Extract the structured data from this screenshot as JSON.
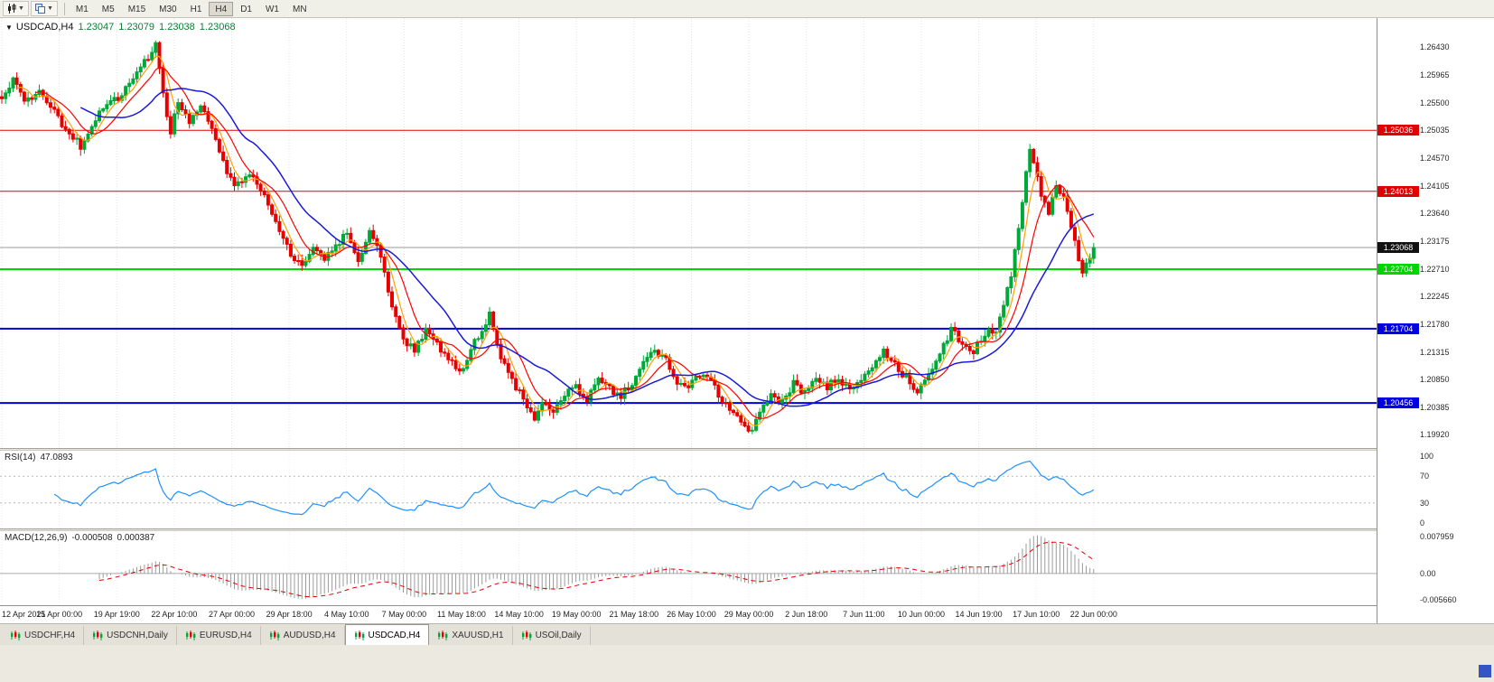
{
  "toolbar": {
    "chart_type_button": "T",
    "timeframes": [
      "M1",
      "M5",
      "M15",
      "M30",
      "H1",
      "H4",
      "D1",
      "W1",
      "MN"
    ],
    "active_timeframe": "H4"
  },
  "chart_data": {
    "type": "candlestick",
    "symbol": "USDCAD",
    "timeframe": "H4",
    "title_symbol": "USDCAD,H4",
    "ohlc": {
      "open": "1.23047",
      "high": "1.23079",
      "low": "1.23038",
      "close": "1.23068"
    },
    "colors": {
      "up": "#00A838",
      "down": "#E60000",
      "ma_fast": "#FFA200",
      "ma_mid": "#FF0000",
      "ma_slow": "#1A1AD8",
      "grid": "#e2e2e2",
      "current_line": "#999999"
    },
    "price_axis": {
      "min": 1.1976,
      "max": 1.268,
      "tick_labels": [
        "1.26430",
        "1.25965",
        "1.25500",
        "1.25035",
        "1.24570",
        "1.24105",
        "1.23640",
        "1.23175",
        "1.22710",
        "1.22245",
        "1.21780",
        "1.21315",
        "1.20850",
        "1.20385",
        "1.19920"
      ]
    },
    "horizontal_lines": [
      {
        "price": 1.25036,
        "label": "1.25036",
        "color": "#E00000",
        "width": 1
      },
      {
        "price": 1.24013,
        "label": "1.24013",
        "color": "#E00000",
        "width": 1
      },
      {
        "price": 1.22704,
        "label": "1.22704",
        "color": "#00D500",
        "width": 2
      },
      {
        "price": 1.21704,
        "label": "1.21704",
        "color": "#0000E0",
        "width": 2
      },
      {
        "price": 1.20456,
        "label": "1.20456",
        "color": "#0000E0",
        "width": 2
      }
    ],
    "current_price": 1.23068,
    "current_price_label": "1.23068",
    "bars": 292,
    "bar_spacing_px": 4.154,
    "price_path": [
      [
        0,
        1.256
      ],
      [
        3,
        1.2588
      ],
      [
        6,
        1.2548
      ],
      [
        10,
        1.2572
      ],
      [
        14,
        1.2535
      ],
      [
        18,
        1.2497
      ],
      [
        21,
        1.2478
      ],
      [
        24,
        1.2512
      ],
      [
        28,
        1.2548
      ],
      [
        32,
        1.2562
      ],
      [
        36,
        1.2598
      ],
      [
        39,
        1.2625
      ],
      [
        41,
        1.2648
      ],
      [
        43,
        1.256
      ],
      [
        45,
        1.2502
      ],
      [
        47,
        1.2548
      ],
      [
        50,
        1.252
      ],
      [
        53,
        1.255
      ],
      [
        56,
        1.2502
      ],
      [
        59,
        1.2448
      ],
      [
        62,
        1.2408
      ],
      [
        66,
        1.2428
      ],
      [
        70,
        1.2398
      ],
      [
        73,
        1.2348
      ],
      [
        77,
        1.2292
      ],
      [
        80,
        1.2272
      ],
      [
        83,
        1.2312
      ],
      [
        86,
        1.229
      ],
      [
        89,
        1.2312
      ],
      [
        92,
        1.233
      ],
      [
        95,
        1.2282
      ],
      [
        98,
        1.2335
      ],
      [
        101,
        1.2292
      ],
      [
        104,
        1.2212
      ],
      [
        107,
        1.2152
      ],
      [
        110,
        1.2135
      ],
      [
        113,
        1.2168
      ],
      [
        116,
        1.2142
      ],
      [
        119,
        1.212
      ],
      [
        122,
        1.2095
      ],
      [
        125,
        1.2135
      ],
      [
        128,
        1.217
      ],
      [
        130,
        1.2195
      ],
      [
        133,
        1.2125
      ],
      [
        136,
        1.2085
      ],
      [
        139,
        1.2052
      ],
      [
        142,
        1.2016
      ],
      [
        144,
        1.2044
      ],
      [
        147,
        1.2032
      ],
      [
        150,
        1.206
      ],
      [
        153,
        1.2075
      ],
      [
        156,
        1.205
      ],
      [
        159,
        1.2088
      ],
      [
        162,
        1.207
      ],
      [
        165,
        1.2058
      ],
      [
        168,
        1.2078
      ],
      [
        171,
        1.2112
      ],
      [
        174,
        1.2135
      ],
      [
        177,
        1.2118
      ],
      [
        180,
        1.2082
      ],
      [
        183,
        1.207
      ],
      [
        186,
        1.2095
      ],
      [
        189,
        1.2082
      ],
      [
        192,
        1.205
      ],
      [
        195,
        1.2028
      ],
      [
        198,
        1.2008
      ],
      [
        200,
        1.1998
      ],
      [
        202,
        1.2032
      ],
      [
        205,
        1.206
      ],
      [
        208,
        1.2048
      ],
      [
        211,
        1.2078
      ],
      [
        214,
        1.2062
      ],
      [
        217,
        1.209
      ],
      [
        220,
        1.2072
      ],
      [
        223,
        1.2088
      ],
      [
        226,
        1.207
      ],
      [
        229,
        1.2082
      ],
      [
        232,
        1.2108
      ],
      [
        235,
        1.2132
      ],
      [
        238,
        1.211
      ],
      [
        241,
        1.2088
      ],
      [
        244,
        1.2062
      ],
      [
        247,
        1.2092
      ],
      [
        250,
        1.2132
      ],
      [
        253,
        1.2168
      ],
      [
        256,
        1.2148
      ],
      [
        259,
        1.2128
      ],
      [
        261,
        1.2155
      ],
      [
        263,
        1.2172
      ],
      [
        265,
        1.2162
      ],
      [
        267,
        1.2205
      ],
      [
        269,
        1.2262
      ],
      [
        271,
        1.2335
      ],
      [
        273,
        1.2428
      ],
      [
        274,
        1.2472
      ],
      [
        275,
        1.2448
      ],
      [
        277,
        1.2395
      ],
      [
        279,
        1.2368
      ],
      [
        281,
        1.2405
      ],
      [
        283,
        1.2392
      ],
      [
        285,
        1.2338
      ],
      [
        287,
        1.229
      ],
      [
        288,
        1.2268
      ],
      [
        290,
        1.2295
      ],
      [
        291,
        1.23068
      ]
    ],
    "moving_averages": [
      {
        "period": 5,
        "color": "#FFA200",
        "width": 1.2
      },
      {
        "period": 10,
        "color": "#FF0000",
        "width": 1.2
      },
      {
        "period": 22,
        "color": "#1A1AD8",
        "width": 1.5
      }
    ],
    "time_labels": [
      "12 Apr 2021",
      "15 Apr 00:00",
      "19 Apr 19:00",
      "22 Apr 10:00",
      "27 Apr 00:00",
      "29 Apr 18:00",
      "4 May 10:00",
      "7 May 00:00",
      "11 May 18:00",
      "14 May 10:00",
      "19 May 00:00",
      "21 May 18:00",
      "26 May 10:00",
      "29 May 00:00",
      "2 Jun 18:00",
      "7 Jun 11:00",
      "10 Jun 00:00",
      "14 Jun 19:00",
      "17 Jun 10:00",
      "22 Jun 00:00"
    ],
    "rsi": {
      "name": "RSI(14)",
      "value": "47.0893",
      "period": 14,
      "axis_labels": [
        "100",
        "70",
        "30",
        "0"
      ],
      "level_high": 70,
      "level_low": 30,
      "line_color": "#1E90FF"
    },
    "macd": {
      "name": "MACD(12,26,9)",
      "value_main": "-0.000508",
      "value_signal": "0.000387",
      "fast": 12,
      "slow": 26,
      "signal": 9,
      "axis_labels": [
        "0.007959",
        "0.00",
        "-0.005660"
      ],
      "axis_max": 0.007959,
      "axis_min": -0.00566,
      "histogram_color": "#9b9b9b",
      "signal_color": "#E00000"
    }
  },
  "tabs": [
    {
      "label": "USDCHF,H4",
      "active": false
    },
    {
      "label": "USDCNH,Daily",
      "active": false
    },
    {
      "label": "EURUSD,H4",
      "active": false
    },
    {
      "label": "AUDUSD,H4",
      "active": false
    },
    {
      "label": "USDCAD,H4",
      "active": true
    },
    {
      "label": "XAUUSD,H1",
      "active": false
    },
    {
      "label": "USOil,Daily",
      "active": false
    }
  ]
}
